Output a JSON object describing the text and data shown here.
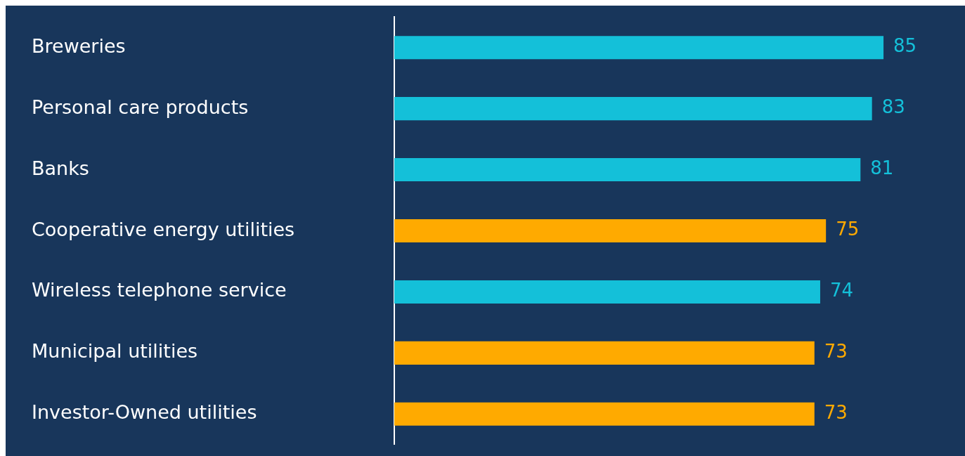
{
  "chart_data": {
    "type": "bar",
    "orientation": "horizontal",
    "categories": [
      "Breweries",
      "Personal care products",
      "Banks",
      "Cooperative energy utilities",
      "Wireless telephone service",
      "Municipal utilities",
      "Investor-Owned utilities"
    ],
    "values": [
      85,
      83,
      81,
      75,
      74,
      73,
      73
    ],
    "colors": [
      "#14c0d9",
      "#14c0d9",
      "#14c0d9",
      "#ffaa00",
      "#14c0d9",
      "#ffaa00",
      "#ffaa00"
    ],
    "data_labels": true,
    "legend": false,
    "tick_labels": "y"
  }
}
